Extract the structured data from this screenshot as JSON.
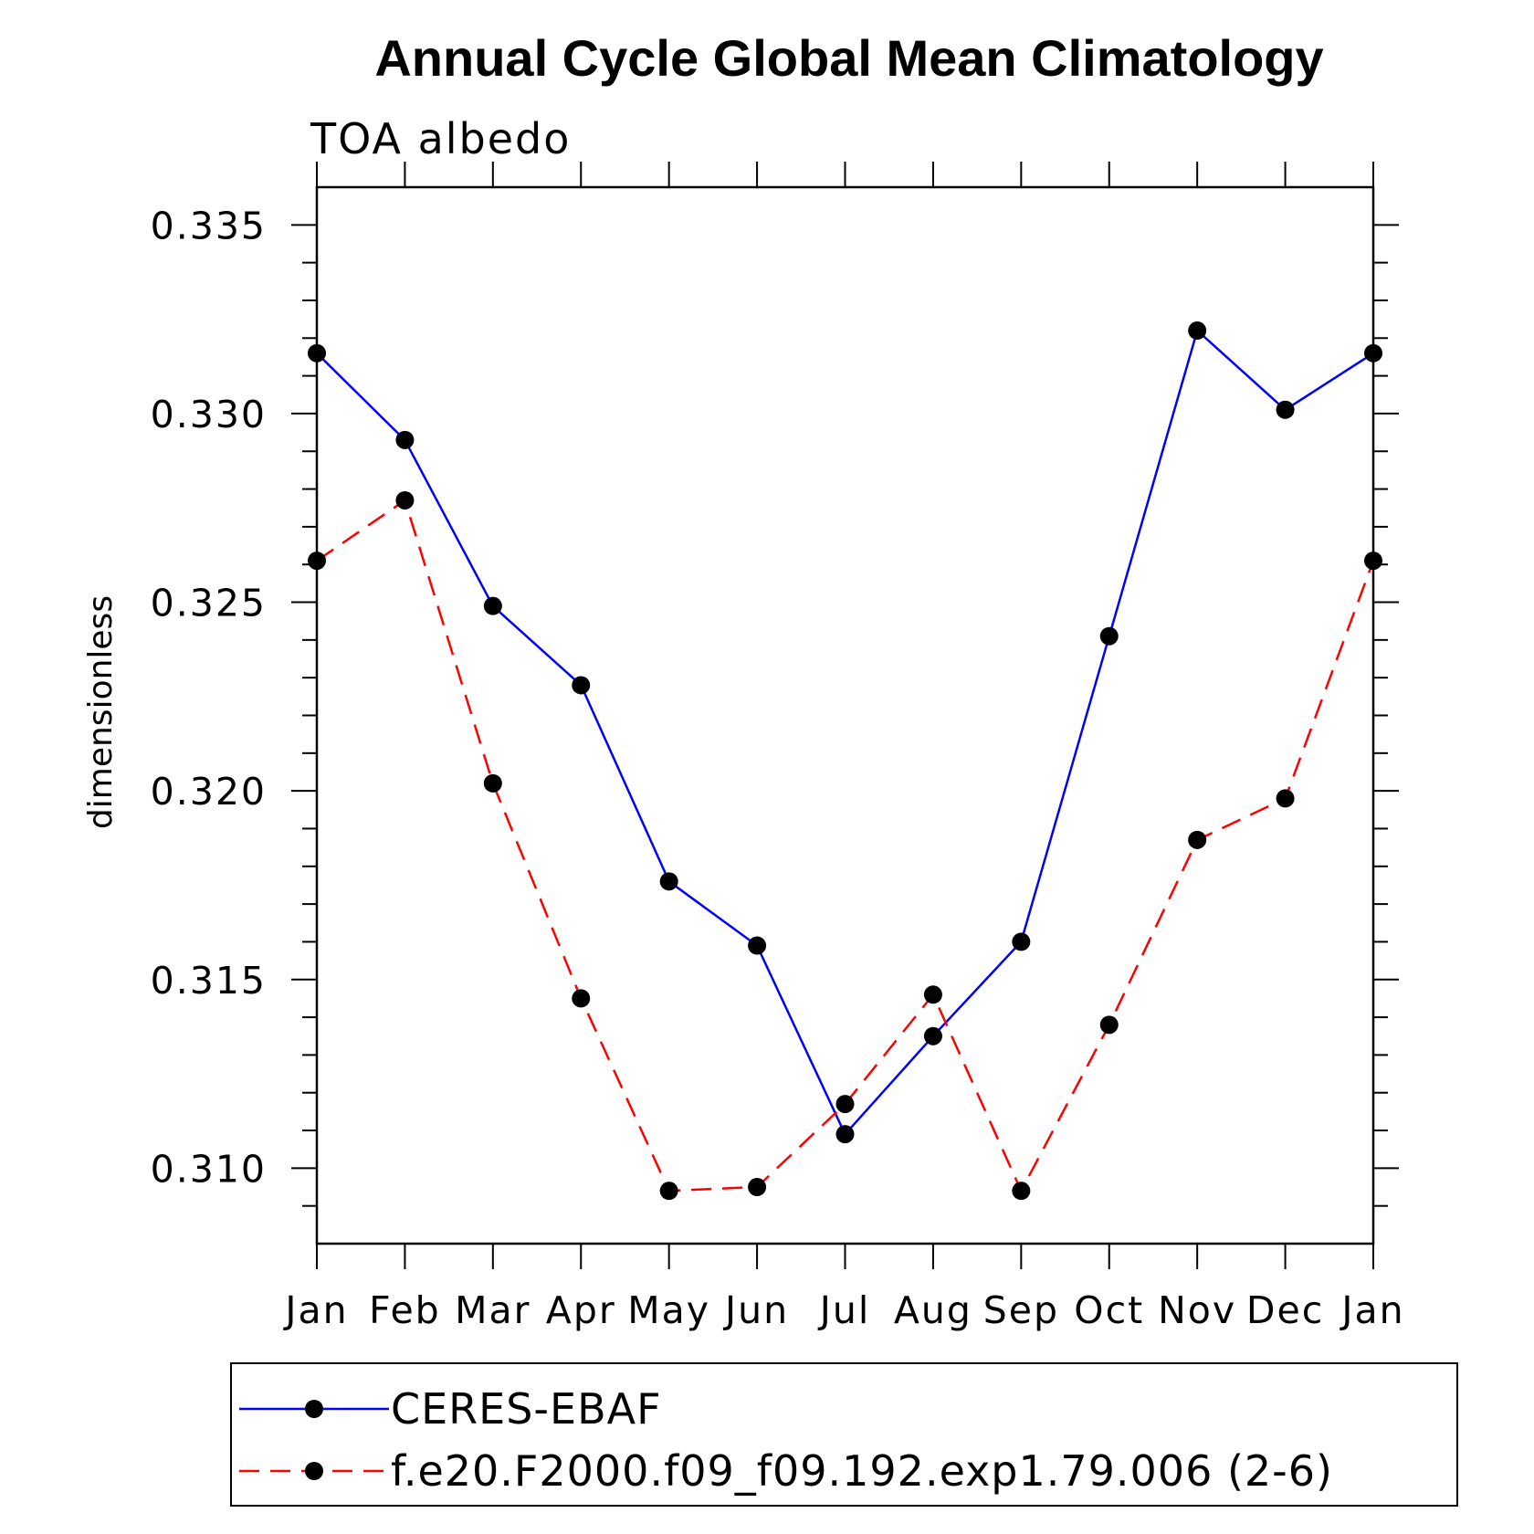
{
  "chart_data": {
    "type": "line",
    "title": "Annual Cycle Global Mean Climatology",
    "subtitle": "TOA albedo",
    "xlabel": "",
    "ylabel": "dimensionless",
    "categories": [
      "Jan",
      "Feb",
      "Mar",
      "Apr",
      "May",
      "Jun",
      "Jul",
      "Aug",
      "Sep",
      "Oct",
      "Nov",
      "Dec",
      "Jan"
    ],
    "ylim": [
      0.308,
      0.336
    ],
    "yticks": [
      0.31,
      0.315,
      0.32,
      0.325,
      0.33,
      0.335
    ],
    "ytick_labels": [
      "0.310",
      "0.315",
      "0.320",
      "0.325",
      "0.330",
      "0.335"
    ],
    "legend_position": "bottom",
    "series": [
      {
        "name": "CERES-EBAF",
        "color": "#0000ff",
        "dash": "solid",
        "marker": "filled-circle",
        "values": [
          0.3316,
          0.3293,
          0.3249,
          0.3228,
          0.3176,
          0.3159,
          0.3109,
          0.3135,
          0.316,
          0.3241,
          0.3322,
          0.3301,
          0.3316
        ]
      },
      {
        "name": "f.e20.F2000.f09_f09.192.exp1.79.006 (2-6)",
        "color": "#ff0000",
        "dash": "dashed",
        "marker": "filled-circle",
        "values": [
          0.3261,
          0.3277,
          0.3202,
          0.3145,
          0.3094,
          0.3095,
          0.3117,
          0.3146,
          0.3094,
          0.3138,
          0.3187,
          0.3198,
          0.3261
        ]
      }
    ]
  }
}
